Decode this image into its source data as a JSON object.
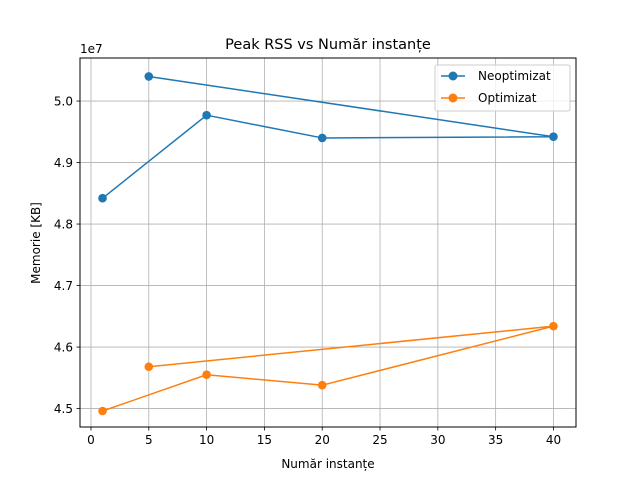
{
  "chart_data": {
    "type": "line",
    "title": "Peak RSS vs Număr instanțe",
    "xlabel": "Număr instanțe",
    "ylabel": "Memorie [KB]",
    "y_offset_label": "1e7",
    "y_scale": 10000000,
    "xlim": [
      -0.95,
      41.95
    ],
    "ylim": [
      44700000,
      50700000
    ],
    "x_ticks": [
      0,
      5,
      10,
      15,
      20,
      25,
      30,
      35,
      40
    ],
    "x_tick_labels": [
      "0",
      "5",
      "10",
      "15",
      "20",
      "25",
      "30",
      "35",
      "40"
    ],
    "y_ticks": [
      45000000,
      46000000,
      47000000,
      48000000,
      49000000,
      50000000
    ],
    "y_tick_labels": [
      "4.5",
      "4.6",
      "4.7",
      "4.8",
      "4.9",
      "5.0"
    ],
    "grid": true,
    "legend_position": "top-right",
    "series": [
      {
        "name": "Neoptimizat",
        "color": "#1f77b4",
        "x": [
          1,
          10,
          20,
          40,
          5
        ],
        "y": [
          48420000,
          49770000,
          49400000,
          49420000,
          50400000
        ]
      },
      {
        "name": "Optimizat",
        "color": "#ff7f0e",
        "x": [
          1,
          10,
          20,
          40,
          5
        ],
        "y": [
          44960000,
          45550000,
          45380000,
          46340000,
          45680000
        ]
      }
    ]
  }
}
